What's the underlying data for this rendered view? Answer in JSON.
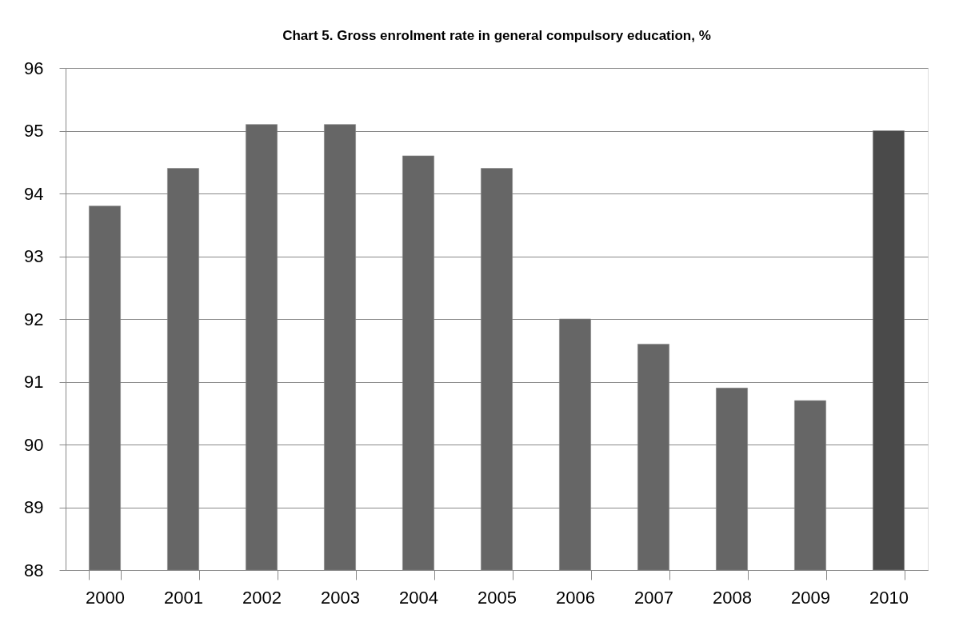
{
  "chart_data": {
    "type": "bar",
    "title": "Chart 5. Gross enrolment rate in general compulsory education, %",
    "categories": [
      "2000",
      "2001",
      "2002",
      "2003",
      "2004",
      "2005",
      "2006",
      "2007",
      "2008",
      "2009",
      "2010"
    ],
    "values": [
      93.8,
      94.4,
      95.1,
      95.1,
      94.6,
      94.4,
      92.0,
      91.6,
      90.9,
      90.7,
      95.0
    ],
    "colors": [
      "#666666",
      "#666666",
      "#666666",
      "#666666",
      "#666666",
      "#666666",
      "#666666",
      "#666666",
      "#666666",
      "#666666",
      "#4a4a4a"
    ],
    "ylim": [
      88,
      96
    ],
    "yticks": [
      88,
      89,
      90,
      91,
      92,
      93,
      94,
      95,
      96
    ],
    "grid": "y"
  }
}
